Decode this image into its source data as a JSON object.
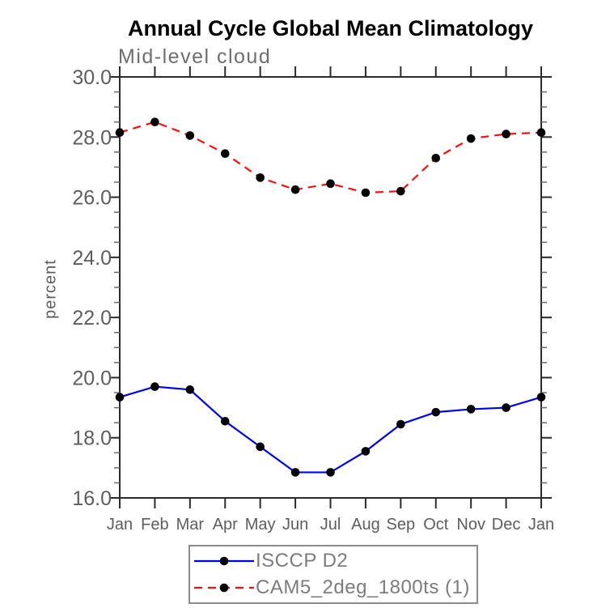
{
  "chart_data": {
    "type": "line",
    "title": "Annual Cycle Global Mean Climatology",
    "subtitle": "Mid-level cloud",
    "xlabel": "",
    "ylabel": "percent",
    "categories": [
      "Jan",
      "Feb",
      "Mar",
      "Apr",
      "May",
      "Jun",
      "Jul",
      "Aug",
      "Sep",
      "Oct",
      "Nov",
      "Dec",
      "Jan"
    ],
    "ylim": [
      16.0,
      30.0
    ],
    "y_major_step": 2.0,
    "y_minor_step": 0.5,
    "y_tick_labels": [
      "16.0",
      "18.0",
      "20.0",
      "22.0",
      "24.0",
      "26.0",
      "28.0",
      "30.0"
    ],
    "grid": false,
    "legend_position": "bottom",
    "series": [
      {
        "name": "ISCCP D2",
        "style": "solid",
        "color": "#0000f0",
        "marker": "circle",
        "marker_color": "#000000",
        "values": [
          19.35,
          19.7,
          19.6,
          18.55,
          17.7,
          16.85,
          16.85,
          17.55,
          18.45,
          18.85,
          18.95,
          19.0,
          19.35
        ]
      },
      {
        "name": "CAM5_2deg_1800ts (1)",
        "style": "dashed",
        "color": "#fb0e0e",
        "marker": "circle",
        "marker_color": "#000000",
        "values": [
          28.15,
          28.5,
          28.05,
          27.45,
          26.65,
          26.25,
          26.45,
          26.15,
          26.2,
          27.3,
          27.95,
          28.1,
          28.15
        ]
      }
    ],
    "axis_color": "#2b2b2b",
    "tick_label_color": "#5d5d5d",
    "minor_tick_color": "#6a6a6a"
  }
}
